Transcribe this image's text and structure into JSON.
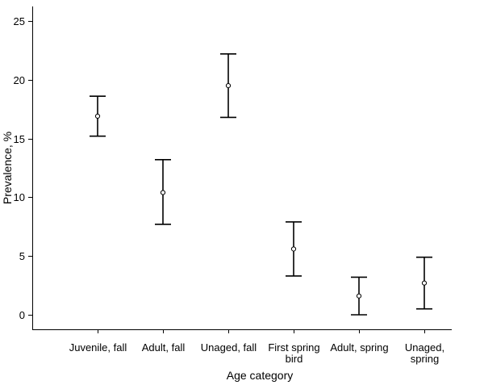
{
  "chart_data": {
    "type": "scatter",
    "title": "",
    "xlabel": "Age category",
    "ylabel": "Prevalence, %",
    "ylim": [
      0,
      25
    ],
    "yticks": [
      0,
      5,
      10,
      15,
      20,
      25
    ],
    "grid": false,
    "categories": [
      [
        "Juvenile, fall"
      ],
      [
        "Adult, fall"
      ],
      [
        "Unaged, fall"
      ],
      [
        "First spring",
        "bird"
      ],
      [
        "Adult, spring"
      ],
      [
        "Unaged,",
        "spring"
      ]
    ],
    "series": [
      {
        "values": [
          16.9,
          10.4,
          19.5,
          5.6,
          1.6,
          2.7
        ],
        "lower": [
          15.2,
          7.7,
          16.8,
          3.3,
          0.0,
          0.5
        ],
        "upper": [
          18.6,
          13.2,
          22.2,
          7.9,
          3.2,
          4.9
        ]
      }
    ]
  }
}
